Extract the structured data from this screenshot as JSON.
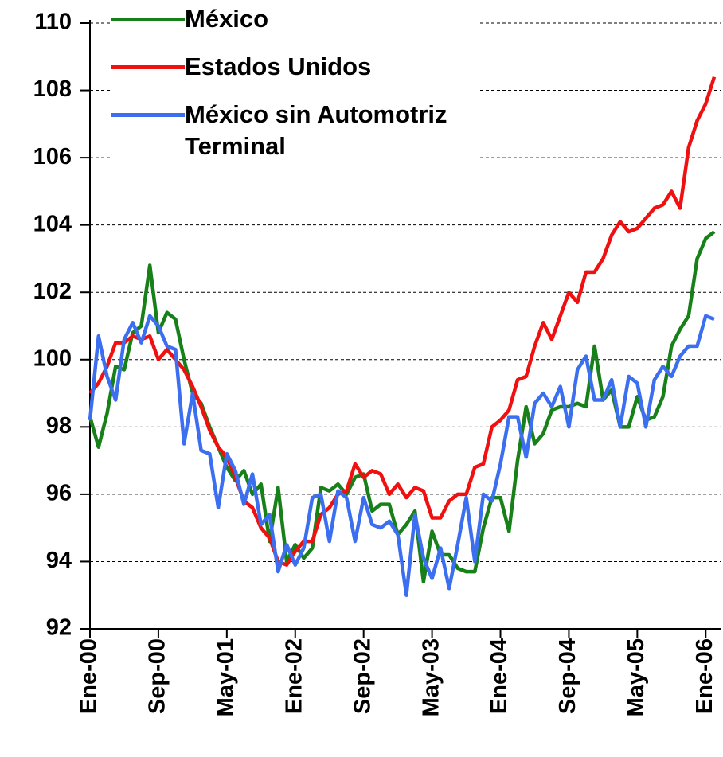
{
  "chart_data": {
    "type": "line",
    "categories": [
      "Ene-00",
      null,
      null,
      null,
      null,
      null,
      null,
      null,
      "Sep-00",
      null,
      null,
      null,
      null,
      null,
      null,
      null,
      "May-01",
      null,
      null,
      null,
      null,
      null,
      null,
      null,
      "Ene-02",
      null,
      null,
      null,
      null,
      null,
      null,
      null,
      "Sep-02",
      null,
      null,
      null,
      null,
      null,
      null,
      null,
      "May-03",
      null,
      null,
      null,
      null,
      null,
      null,
      null,
      "Ene-04",
      null,
      null,
      null,
      null,
      null,
      null,
      null,
      "Sep-04",
      null,
      null,
      null,
      null,
      null,
      null,
      null,
      "May-05",
      null,
      null,
      null,
      null,
      null,
      null,
      null,
      "Ene-06",
      null
    ],
    "series": [
      {
        "name": "México",
        "color": "#188018",
        "values": [
          98.3,
          97.4,
          98.4,
          99.8,
          99.7,
          100.8,
          101.0,
          102.8,
          100.8,
          101.4,
          101.2,
          100.0,
          99.0,
          98.7,
          98.0,
          97.4,
          96.8,
          96.4,
          96.7,
          96.0,
          96.3,
          94.6,
          96.2,
          94.0,
          94.5,
          94.1,
          94.4,
          96.2,
          96.1,
          96.3,
          96.0,
          96.5,
          96.6,
          95.5,
          95.7,
          95.7,
          94.8,
          95.1,
          95.5,
          93.4,
          94.9,
          94.2,
          94.2,
          93.8,
          93.7,
          93.7,
          95.0,
          95.9,
          95.9,
          94.9,
          97.0,
          98.6,
          97.5,
          97.8,
          98.5,
          98.6,
          98.6,
          98.7,
          98.6,
          100.4,
          98.8,
          99.1,
          98.0,
          98.0,
          98.9,
          98.2,
          98.3,
          98.9,
          100.4,
          100.9,
          101.3,
          103.0,
          103.6,
          103.8
        ]
      },
      {
        "name": "Estados Unidos",
        "color": "#f01010",
        "values": [
          99.0,
          99.3,
          99.8,
          100.5,
          100.5,
          100.7,
          100.6,
          100.7,
          100.0,
          100.3,
          100.0,
          99.7,
          99.2,
          98.6,
          97.9,
          97.4,
          97.1,
          96.5,
          95.8,
          95.6,
          95.0,
          94.7,
          94.0,
          93.9,
          94.3,
          94.6,
          94.6,
          95.4,
          95.6,
          96.0,
          96.1,
          96.9,
          96.5,
          96.7,
          96.6,
          96.0,
          96.3,
          95.9,
          96.2,
          96.1,
          95.3,
          95.3,
          95.8,
          96.0,
          96.0,
          96.8,
          96.9,
          98.0,
          98.2,
          98.5,
          99.4,
          99.5,
          100.4,
          101.1,
          100.6,
          101.3,
          102.0,
          101.7,
          102.6,
          102.6,
          103.0,
          103.7,
          104.1,
          103.8,
          103.9,
          104.2,
          104.5,
          104.6,
          105.0,
          104.5,
          106.3,
          107.1,
          107.6,
          108.4
        ]
      },
      {
        "name": "México sin Automotriz Terminal",
        "color": "#3c6ef0",
        "values": [
          98.2,
          100.7,
          99.5,
          98.8,
          100.6,
          101.1,
          100.5,
          101.3,
          101.0,
          100.4,
          100.3,
          97.5,
          99.0,
          97.3,
          97.2,
          95.6,
          97.2,
          96.7,
          95.7,
          96.6,
          95.1,
          95.4,
          93.7,
          94.5,
          93.9,
          94.4,
          95.9,
          96.0,
          94.6,
          96.1,
          95.9,
          94.6,
          95.9,
          95.1,
          95.0,
          95.2,
          94.8,
          93.0,
          95.4,
          94.1,
          93.5,
          94.4,
          93.2,
          94.5,
          95.9,
          94.0,
          96.0,
          95.8,
          96.9,
          98.3,
          98.3,
          97.1,
          98.7,
          99.0,
          98.6,
          99.2,
          98.0,
          99.7,
          100.1,
          98.8,
          98.8,
          99.4,
          98.0,
          99.5,
          99.3,
          98.0,
          99.4,
          99.8,
          99.5,
          100.1,
          100.4,
          100.4,
          101.3,
          101.2
        ]
      }
    ],
    "ylim": [
      92,
      110
    ],
    "yticks": [
      92,
      94,
      96,
      98,
      100,
      102,
      104,
      106,
      108,
      110
    ],
    "grid": true
  }
}
